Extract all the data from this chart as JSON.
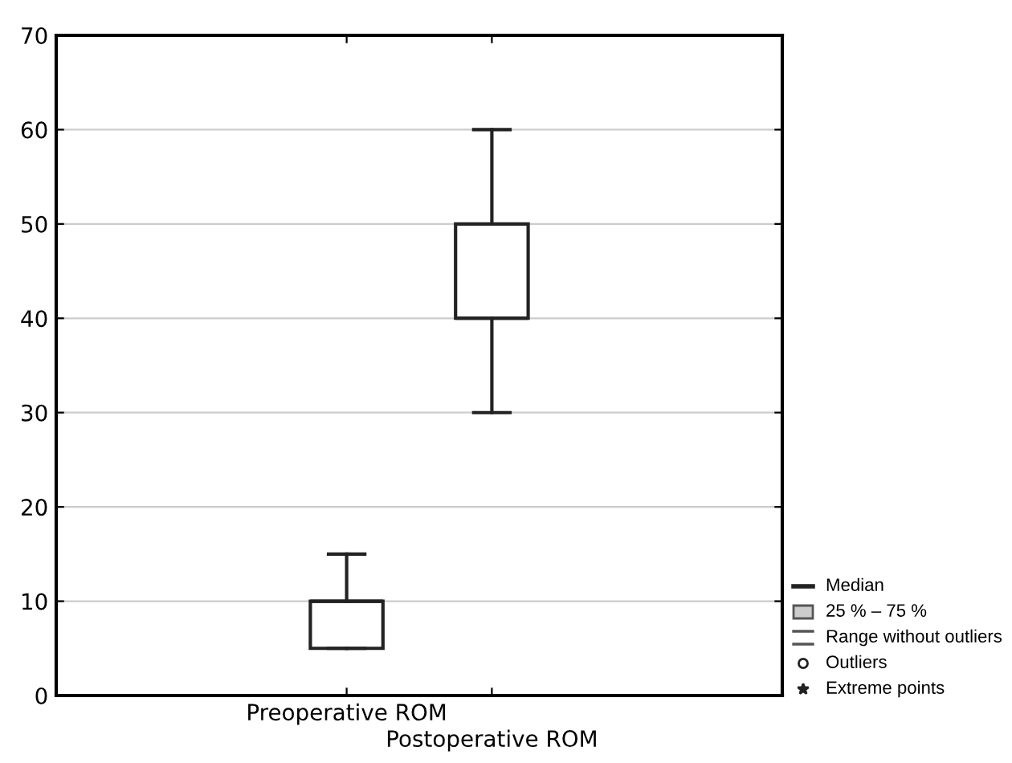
{
  "chart_data": {
    "type": "box",
    "categories": [
      "Preoperative ROM",
      "Postoperative ROM"
    ],
    "boxes": [
      {
        "low": 5,
        "q1": 5,
        "median": 10,
        "q3": 10,
        "high": 15
      },
      {
        "low": 30,
        "q1": 40,
        "median": 40,
        "q3": 50,
        "high": 60
      }
    ],
    "ylim": [
      0,
      70
    ],
    "yticks": [
      0,
      10,
      20,
      30,
      40,
      50,
      60,
      70
    ],
    "grid": "y",
    "annotations": [
      "Median",
      "25 % – 75 %",
      "Range without outliers",
      "Outliers",
      "Extreme points"
    ]
  }
}
